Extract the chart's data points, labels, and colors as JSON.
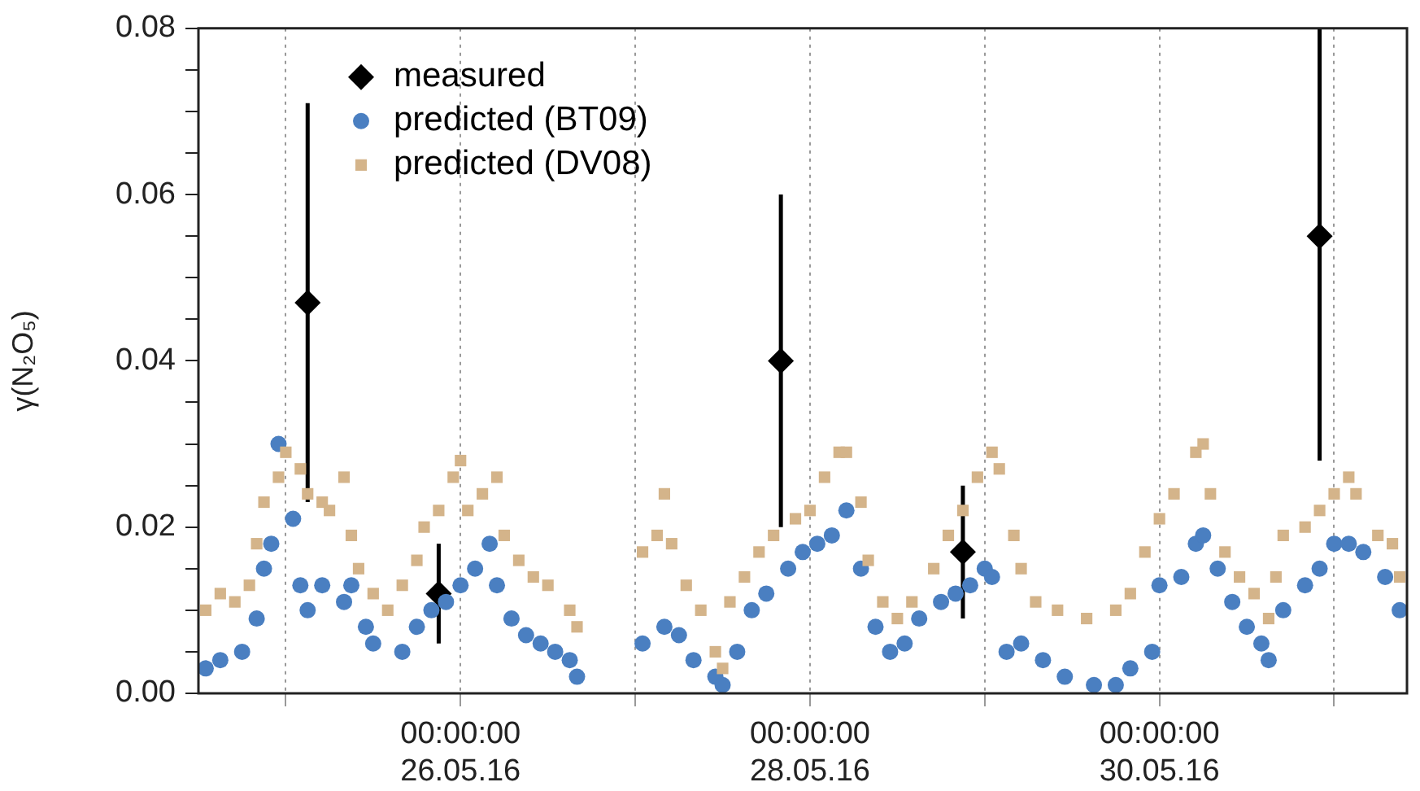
{
  "chart_data": {
    "type": "scatter",
    "ylabel": "γ(N₂O₅)",
    "xlim": [
      "--05-24T12:00",
      "--05-31T10:00"
    ],
    "xticks": [
      {
        "value": "--05-25",
        "label": null
      },
      {
        "value": "--05-26",
        "label": "00:00:00\n26.05.16"
      },
      {
        "value": "--05-27",
        "label": null
      },
      {
        "value": "--05-28",
        "label": "00:00:00\n28.05.16"
      },
      {
        "value": "--05-29",
        "label": null
      },
      {
        "value": "--05-30",
        "label": "00:00:00\n30.05.16"
      },
      {
        "value": "--05-31",
        "label": null
      }
    ],
    "ylim": [
      0,
      0.08
    ],
    "yticks": [
      {
        "value": 0,
        "label": "0.00"
      },
      {
        "value": 0.005,
        "label": null
      },
      {
        "value": 0.01,
        "label": null
      },
      {
        "value": 0.015,
        "label": null
      },
      {
        "value": 0.02,
        "label": "0.02"
      },
      {
        "value": 0.025,
        "label": null
      },
      {
        "value": 0.03,
        "label": null
      },
      {
        "value": 0.035,
        "label": null
      },
      {
        "value": 0.04,
        "label": "0.04"
      },
      {
        "value": 0.045,
        "label": null
      },
      {
        "value": 0.05,
        "label": null
      },
      {
        "value": 0.055,
        "label": null
      },
      {
        "value": 0.06,
        "label": "0.06"
      },
      {
        "value": 0.065,
        "label": null
      },
      {
        "value": 0.07,
        "label": null
      },
      {
        "value": 0.075,
        "label": null
      },
      {
        "value": 0.08,
        "label": "0.08"
      }
    ],
    "grid": "x",
    "legend": "top left",
    "series": [
      {
        "name": "measured",
        "color": "#000000",
        "marker": "diamond",
        "x": [
          "--05-25T03:00",
          "--05-25T21:00",
          "--05-27T20:00",
          "--05-28T21:00",
          "--05-30T22:00"
        ],
        "values": [
          0.047,
          0.012,
          0.04,
          0.017,
          0.055
        ],
        "errors": [
          [
            0.023,
            0.071
          ],
          [
            0.006,
            0.018
          ],
          [
            0.02,
            0.06
          ],
          [
            0.009,
            0.025
          ],
          [
            0.028,
            0.08
          ]
        ]
      },
      {
        "name": "predicted (BT09)",
        "color": "#4a7fc1",
        "marker": "circle",
        "x": [
          "--05-24T13:00",
          "--05-24T15:00",
          "--05-24T18:00",
          "--05-24T20:00",
          "--05-24T21:00",
          "--05-24T22:00",
          "--05-24T23:00",
          "--05-25T01:00",
          "--05-25T02:00",
          "--05-25T03:00",
          "--05-25T05:00",
          "--05-25T08:00",
          "--05-25T09:00",
          "--05-25T11:00",
          "--05-25T12:00",
          "--05-25T16:00",
          "--05-25T18:00",
          "--05-25T20:00",
          "--05-25T22:00",
          "--05-26T00:00",
          "--05-26T02:00",
          "--05-26T04:00",
          "--05-26T05:00",
          "--05-26T07:00",
          "--05-26T09:00",
          "--05-26T11:00",
          "--05-26T13:00",
          "--05-26T15:00",
          "--05-26T16:00",
          "--05-27T01:00",
          "--05-27T04:00",
          "--05-27T06:00",
          "--05-27T08:00",
          "--05-27T11:00",
          "--05-27T12:00",
          "--05-27T14:00",
          "--05-27T16:00",
          "--05-27T18:00",
          "--05-27T21:00",
          "--05-27T23:00",
          "--05-28T01:00",
          "--05-28T03:00",
          "--05-28T05:00",
          "--05-28T07:00",
          "--05-28T09:00",
          "--05-28T11:00",
          "--05-28T13:00",
          "--05-28T15:00",
          "--05-28T18:00",
          "--05-28T20:00",
          "--05-28T22:00",
          "--05-29T00:00",
          "--05-29T01:00",
          "--05-29T03:00",
          "--05-29T05:00",
          "--05-29T08:00",
          "--05-29T11:00",
          "--05-29T15:00",
          "--05-29T18:00",
          "--05-29T20:00",
          "--05-29T23:00",
          "--05-30T00:00",
          "--05-30T03:00",
          "--05-30T05:00",
          "--05-30T06:00",
          "--05-30T08:00",
          "--05-30T10:00",
          "--05-30T12:00",
          "--05-30T14:00",
          "--05-30T15:00",
          "--05-30T17:00",
          "--05-30T20:00",
          "--05-30T22:00",
          "--05-31T00:00",
          "--05-31T02:00",
          "--05-31T04:00",
          "--05-31T07:00",
          "--05-31T09:00"
        ],
        "values": [
          0.003,
          0.004,
          0.005,
          0.009,
          0.015,
          0.018,
          0.03,
          0.021,
          0.013,
          0.01,
          0.013,
          0.011,
          0.013,
          0.008,
          0.006,
          0.005,
          0.008,
          0.01,
          0.011,
          0.013,
          0.015,
          0.018,
          0.013,
          0.009,
          0.007,
          0.006,
          0.005,
          0.004,
          0.002,
          0.006,
          0.008,
          0.007,
          0.004,
          0.002,
          0.001,
          0.005,
          0.01,
          0.012,
          0.015,
          0.017,
          0.018,
          0.019,
          0.022,
          0.015,
          0.008,
          0.005,
          0.006,
          0.009,
          0.011,
          0.012,
          0.013,
          0.015,
          0.014,
          0.005,
          0.006,
          0.004,
          0.002,
          0.001,
          0.001,
          0.003,
          0.005,
          0.013,
          0.014,
          0.018,
          0.019,
          0.015,
          0.011,
          0.008,
          0.006,
          0.004,
          0.01,
          0.013,
          0.015,
          0.018,
          0.018,
          0.017,
          0.014,
          0.01
        ]
      },
      {
        "name": "predicted (DV08)",
        "color": "#d4b48a",
        "marker": "square",
        "x": [
          "--05-24T13:00",
          "--05-24T15:00",
          "--05-24T17:00",
          "--05-24T19:00",
          "--05-24T20:00",
          "--05-24T21:00",
          "--05-24T23:00",
          "--05-25T00:00",
          "--05-25T02:00",
          "--05-25T03:00",
          "--05-25T05:00",
          "--05-25T06:00",
          "--05-25T08:00",
          "--05-25T09:00",
          "--05-25T10:00",
          "--05-25T12:00",
          "--05-25T14:00",
          "--05-25T16:00",
          "--05-25T18:00",
          "--05-25T19:00",
          "--05-25T21:00",
          "--05-25T23:00",
          "--05-26T00:00",
          "--05-26T01:00",
          "--05-26T03:00",
          "--05-26T05:00",
          "--05-26T06:00",
          "--05-26T08:00",
          "--05-26T10:00",
          "--05-26T12:00",
          "--05-26T15:00",
          "--05-26T16:00",
          "--05-27T01:00",
          "--05-27T03:00",
          "--05-27T04:00",
          "--05-27T05:00",
          "--05-27T07:00",
          "--05-27T09:00",
          "--05-27T11:00",
          "--05-27T12:00",
          "--05-27T13:00",
          "--05-27T15:00",
          "--05-27T17:00",
          "--05-27T19:00",
          "--05-27T22:00",
          "--05-28T00:00",
          "--05-28T02:00",
          "--05-28T04:00",
          "--05-28T05:00",
          "--05-28T07:00",
          "--05-28T08:00",
          "--05-28T10:00",
          "--05-28T12:00",
          "--05-28T14:00",
          "--05-28T17:00",
          "--05-28T19:00",
          "--05-28T21:00",
          "--05-28T23:00",
          "--05-29T01:00",
          "--05-29T02:00",
          "--05-29T04:00",
          "--05-29T05:00",
          "--05-29T07:00",
          "--05-29T10:00",
          "--05-29T14:00",
          "--05-29T18:00",
          "--05-29T20:00",
          "--05-29T22:00",
          "--05-30T00:00",
          "--05-30T02:00",
          "--05-30T05:00",
          "--05-30T06:00",
          "--05-30T07:00",
          "--05-30T09:00",
          "--05-30T11:00",
          "--05-30T13:00",
          "--05-30T15:00",
          "--05-30T16:00",
          "--05-30T17:00",
          "--05-30T20:00",
          "--05-30T22:00",
          "--05-31T00:00",
          "--05-31T02:00",
          "--05-31T03:00",
          "--05-31T06:00",
          "--05-31T08:00",
          "--05-31T09:00"
        ],
        "values": [
          0.01,
          0.012,
          0.011,
          0.013,
          0.018,
          0.023,
          0.026,
          0.029,
          0.027,
          0.024,
          0.023,
          0.022,
          0.026,
          0.019,
          0.015,
          0.012,
          0.01,
          0.013,
          0.016,
          0.02,
          0.022,
          0.026,
          0.028,
          0.022,
          0.024,
          0.026,
          0.019,
          0.016,
          0.014,
          0.013,
          0.01,
          0.008,
          0.017,
          0.019,
          0.024,
          0.018,
          0.013,
          0.01,
          0.005,
          0.003,
          0.011,
          0.014,
          0.017,
          0.019,
          0.021,
          0.022,
          0.026,
          0.029,
          0.029,
          0.023,
          0.016,
          0.011,
          0.009,
          0.011,
          0.015,
          0.019,
          0.022,
          0.026,
          0.029,
          0.027,
          0.019,
          0.015,
          0.011,
          0.01,
          0.009,
          0.01,
          0.012,
          0.017,
          0.021,
          0.024,
          0.029,
          0.03,
          0.024,
          0.017,
          0.014,
          0.012,
          0.009,
          0.014,
          0.019,
          0.02,
          0.022,
          0.024,
          0.026,
          0.024,
          0.019,
          0.018,
          0.014
        ]
      }
    ]
  }
}
